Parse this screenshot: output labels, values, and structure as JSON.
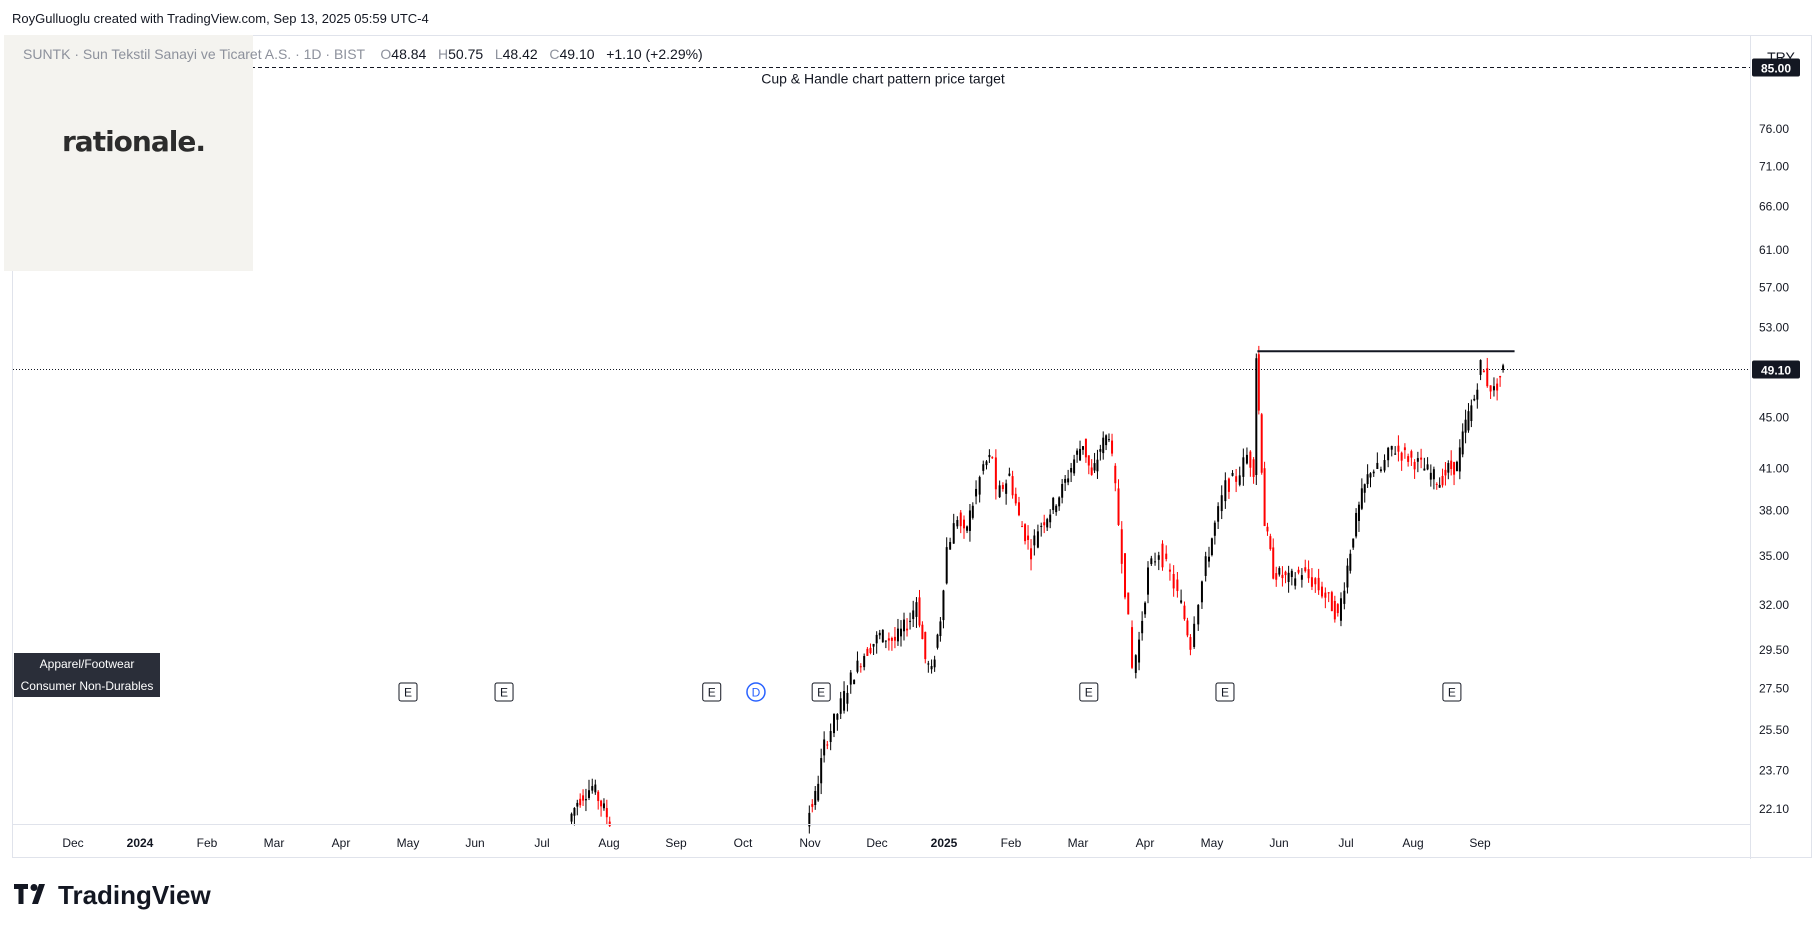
{
  "attribution": "RoyGulluoglu created with TradingView.com, Sep 13, 2025 05:59 UTC-4",
  "legend": {
    "name": "SUNTK · Sun Tekstil Sanayi ve Ticaret A.S. · 1D · BIST",
    "open_label": "O",
    "open": "48.84",
    "high_label": "H",
    "high": "50.75",
    "low_label": "L",
    "low": "48.42",
    "close_label": "C",
    "close": "49.10",
    "change": "+1.10 (+2.29%)"
  },
  "watermark_logo": "rationale.",
  "currency": "TRY",
  "tags": [
    "Apparel/Footwear",
    "Consumer Non-Durables"
  ],
  "footer_logo": "TradingView",
  "icons": {
    "footer": "tradingview-logo-icon",
    "earnings": "earnings-e-icon",
    "dividend": "dividend-d-icon"
  },
  "colors": {
    "up": "#000000",
    "down": "#ff0000",
    "axis_text": "#131722",
    "label_bg": "#131722",
    "dividend": "#2962ff"
  },
  "chart_data": {
    "type": "candlestick",
    "title": "",
    "xlabel": "",
    "ylabel": "",
    "scale": "log",
    "ylim": [
      21.5,
      90
    ],
    "x_ticks": [
      {
        "label": "Dec",
        "date": "2023-12-01"
      },
      {
        "label": "2024",
        "date": "2024-01-01",
        "bold": true
      },
      {
        "label": "Feb",
        "date": "2024-02-01"
      },
      {
        "label": "Mar",
        "date": "2024-03-01"
      },
      {
        "label": "Apr",
        "date": "2024-04-01"
      },
      {
        "label": "May",
        "date": "2024-05-01"
      },
      {
        "label": "Jun",
        "date": "2024-06-01"
      },
      {
        "label": "Jul",
        "date": "2024-07-01"
      },
      {
        "label": "Aug",
        "date": "2024-08-01"
      },
      {
        "label": "Sep",
        "date": "2024-09-01"
      },
      {
        "label": "Oct",
        "date": "2024-10-01"
      },
      {
        "label": "Nov",
        "date": "2024-11-01"
      },
      {
        "label": "Dec",
        "date": "2024-12-01"
      },
      {
        "label": "2025",
        "date": "2025-01-01",
        "bold": true
      },
      {
        "label": "Feb",
        "date": "2025-02-01"
      },
      {
        "label": "Mar",
        "date": "2025-03-01"
      },
      {
        "label": "Apr",
        "date": "2025-04-01"
      },
      {
        "label": "May",
        "date": "2025-05-01"
      },
      {
        "label": "Jun",
        "date": "2025-06-01"
      },
      {
        "label": "Jul",
        "date": "2025-07-01"
      },
      {
        "label": "Aug",
        "date": "2025-08-01"
      },
      {
        "label": "Sep",
        "date": "2025-09-01"
      }
    ],
    "y_ticks": [
      22.1,
      23.7,
      25.5,
      27.5,
      29.5,
      32.0,
      35.0,
      38.0,
      41.0,
      45.0,
      53.0,
      57.0,
      61.0,
      66.0,
      71.0,
      76.0
    ],
    "y_tick_labels": [
      "22.10",
      "23.70",
      "25.50",
      "27.50",
      "29.50",
      "32.00",
      "35.00",
      "38.00",
      "41.00",
      "45.00",
      "53.00",
      "57.00",
      "61.00",
      "66.00",
      "71.00",
      "76.00"
    ],
    "price_labels": [
      {
        "value": 85.0,
        "text": "85.00"
      },
      {
        "value": 49.1,
        "text": "49.10"
      }
    ],
    "target_line": {
      "value": 85.0,
      "label": "Cup & Handle chart pattern price target"
    },
    "resistance_line": {
      "value": 50.75,
      "start": "2025-05-22",
      "end": "2025-09-12"
    },
    "last_price_line": 49.1,
    "events": [
      {
        "type": "E",
        "date": "2024-05-01"
      },
      {
        "type": "E",
        "date": "2024-06-14"
      },
      {
        "type": "E",
        "date": "2024-09-17"
      },
      {
        "type": "D",
        "date": "2024-10-07"
      },
      {
        "type": "E",
        "date": "2024-11-06"
      },
      {
        "type": "E",
        "date": "2025-03-06"
      },
      {
        "type": "E",
        "date": "2025-05-07"
      },
      {
        "type": "E",
        "date": "2025-08-19"
      }
    ],
    "price_path": [
      {
        "date": "2024-07-14",
        "price": 21.6
      },
      {
        "date": "2024-07-18",
        "price": 22.4
      },
      {
        "date": "2024-07-22",
        "price": 22.8
      },
      {
        "date": "2024-07-25",
        "price": 23.0
      },
      {
        "date": "2024-07-29",
        "price": 22.3
      },
      {
        "date": "2024-08-02",
        "price": 21.6
      },
      {
        "date": "2024-10-31",
        "price": 21.7
      },
      {
        "date": "2024-11-04",
        "price": 22.6
      },
      {
        "date": "2024-11-08",
        "price": 24.8
      },
      {
        "date": "2024-11-14",
        "price": 26.3
      },
      {
        "date": "2024-11-20",
        "price": 28.0
      },
      {
        "date": "2024-11-26",
        "price": 29.3
      },
      {
        "date": "2024-12-03",
        "price": 30.3
      },
      {
        "date": "2024-12-10",
        "price": 30.0
      },
      {
        "date": "2024-12-17",
        "price": 31.2
      },
      {
        "date": "2024-12-20",
        "price": 32.3
      },
      {
        "date": "2024-12-24",
        "price": 29.0
      },
      {
        "date": "2024-12-27",
        "price": 28.3
      },
      {
        "date": "2024-12-31",
        "price": 31.3
      },
      {
        "date": "2025-01-03",
        "price": 35.5
      },
      {
        "date": "2025-01-08",
        "price": 37.6
      },
      {
        "date": "2025-01-11",
        "price": 36.3
      },
      {
        "date": "2025-01-15",
        "price": 38.5
      },
      {
        "date": "2025-01-20",
        "price": 41.2
      },
      {
        "date": "2025-01-24",
        "price": 42.0
      },
      {
        "date": "2025-01-26",
        "price": 39.0
      },
      {
        "date": "2025-01-29",
        "price": 39.7
      },
      {
        "date": "2025-02-01",
        "price": 40.5
      },
      {
        "date": "2025-02-05",
        "price": 37.5
      },
      {
        "date": "2025-02-10",
        "price": 35.3
      },
      {
        "date": "2025-02-13",
        "price": 36.8
      },
      {
        "date": "2025-02-18",
        "price": 38.0
      },
      {
        "date": "2025-02-23",
        "price": 39.5
      },
      {
        "date": "2025-02-28",
        "price": 41.7
      },
      {
        "date": "2025-03-04",
        "price": 43.0
      },
      {
        "date": "2025-03-08",
        "price": 40.3
      },
      {
        "date": "2025-03-12",
        "price": 42.6
      },
      {
        "date": "2025-03-16",
        "price": 43.8
      },
      {
        "date": "2025-03-19",
        "price": 39.4
      },
      {
        "date": "2025-03-22",
        "price": 35.0
      },
      {
        "date": "2025-03-25",
        "price": 31.0
      },
      {
        "date": "2025-03-27",
        "price": 28.5
      },
      {
        "date": "2025-03-30",
        "price": 30.0
      },
      {
        "date": "2025-04-03",
        "price": 34.0
      },
      {
        "date": "2025-04-08",
        "price": 35.3
      },
      {
        "date": "2025-04-13",
        "price": 33.8
      },
      {
        "date": "2025-04-18",
        "price": 32.0
      },
      {
        "date": "2025-04-22",
        "price": 29.8
      },
      {
        "date": "2025-04-24",
        "price": 31.3
      },
      {
        "date": "2025-04-29",
        "price": 34.5
      },
      {
        "date": "2025-05-03",
        "price": 37.0
      },
      {
        "date": "2025-05-08",
        "price": 39.7
      },
      {
        "date": "2025-05-13",
        "price": 40.3
      },
      {
        "date": "2025-05-18",
        "price": 42.0
      },
      {
        "date": "2025-05-21",
        "price": 41.0
      },
      {
        "date": "2025-05-22",
        "price": 50.4
      },
      {
        "date": "2025-05-26",
        "price": 37.2
      },
      {
        "date": "2025-05-30",
        "price": 34.0
      },
      {
        "date": "2025-06-06",
        "price": 33.5
      },
      {
        "date": "2025-06-12",
        "price": 34.0
      },
      {
        "date": "2025-06-18",
        "price": 33.2
      },
      {
        "date": "2025-06-24",
        "price": 32.3
      },
      {
        "date": "2025-06-28",
        "price": 31.3
      },
      {
        "date": "2025-07-01",
        "price": 33.3
      },
      {
        "date": "2025-07-05",
        "price": 36.5
      },
      {
        "date": "2025-07-09",
        "price": 39.0
      },
      {
        "date": "2025-07-13",
        "price": 41.0
      },
      {
        "date": "2025-07-18",
        "price": 40.9
      },
      {
        "date": "2025-07-23",
        "price": 42.6
      },
      {
        "date": "2025-07-29",
        "price": 42.0
      },
      {
        "date": "2025-08-04",
        "price": 41.4
      },
      {
        "date": "2025-08-10",
        "price": 40.6
      },
      {
        "date": "2025-08-14",
        "price": 40.0
      },
      {
        "date": "2025-08-18",
        "price": 41.0
      },
      {
        "date": "2025-08-22",
        "price": 41.2
      },
      {
        "date": "2025-08-26",
        "price": 44.5
      },
      {
        "date": "2025-08-30",
        "price": 46.6
      },
      {
        "date": "2025-09-02",
        "price": 49.5
      },
      {
        "date": "2025-09-05",
        "price": 48.0
      },
      {
        "date": "2025-09-08",
        "price": 47.2
      },
      {
        "date": "2025-09-12",
        "price": 49.1
      }
    ]
  }
}
